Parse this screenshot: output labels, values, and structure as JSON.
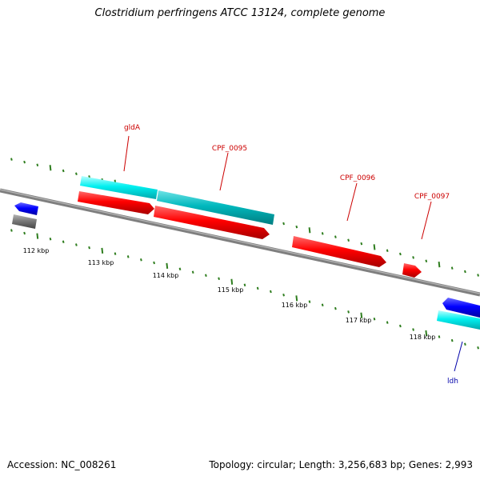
{
  "title": "Clostridium perfringens ATCC 13124, complete genome",
  "footer": {
    "accession_text": "Accession: NC_008261",
    "summary_text": "Topology: circular; Length: 3,256,683 bp; Genes: 2,993"
  },
  "colors": {
    "backbone": "#8a8a8a",
    "tick": "#2e7d1e",
    "cds_forward": "#ff0000",
    "cds_reverse": "#0000ff",
    "gene_feature": "#00e5ee",
    "gene_selected": "#00b2b8",
    "other_feature": "#7a7a7a",
    "label_forward": "#cc0000",
    "label_reverse": "#0000aa"
  },
  "tick_labels": [
    "112 kbp",
    "113 kbp",
    "114 kbp",
    "115 kbp",
    "116 kbp",
    "117 kbp",
    "118 kbp"
  ],
  "gene_labels": {
    "glda": "gldA",
    "cpf_0095": "CPF_0095",
    "cpf_0096": "CPF_0096",
    "cpf_0097": "CPF_0097",
    "ldh": "ldh"
  }
}
